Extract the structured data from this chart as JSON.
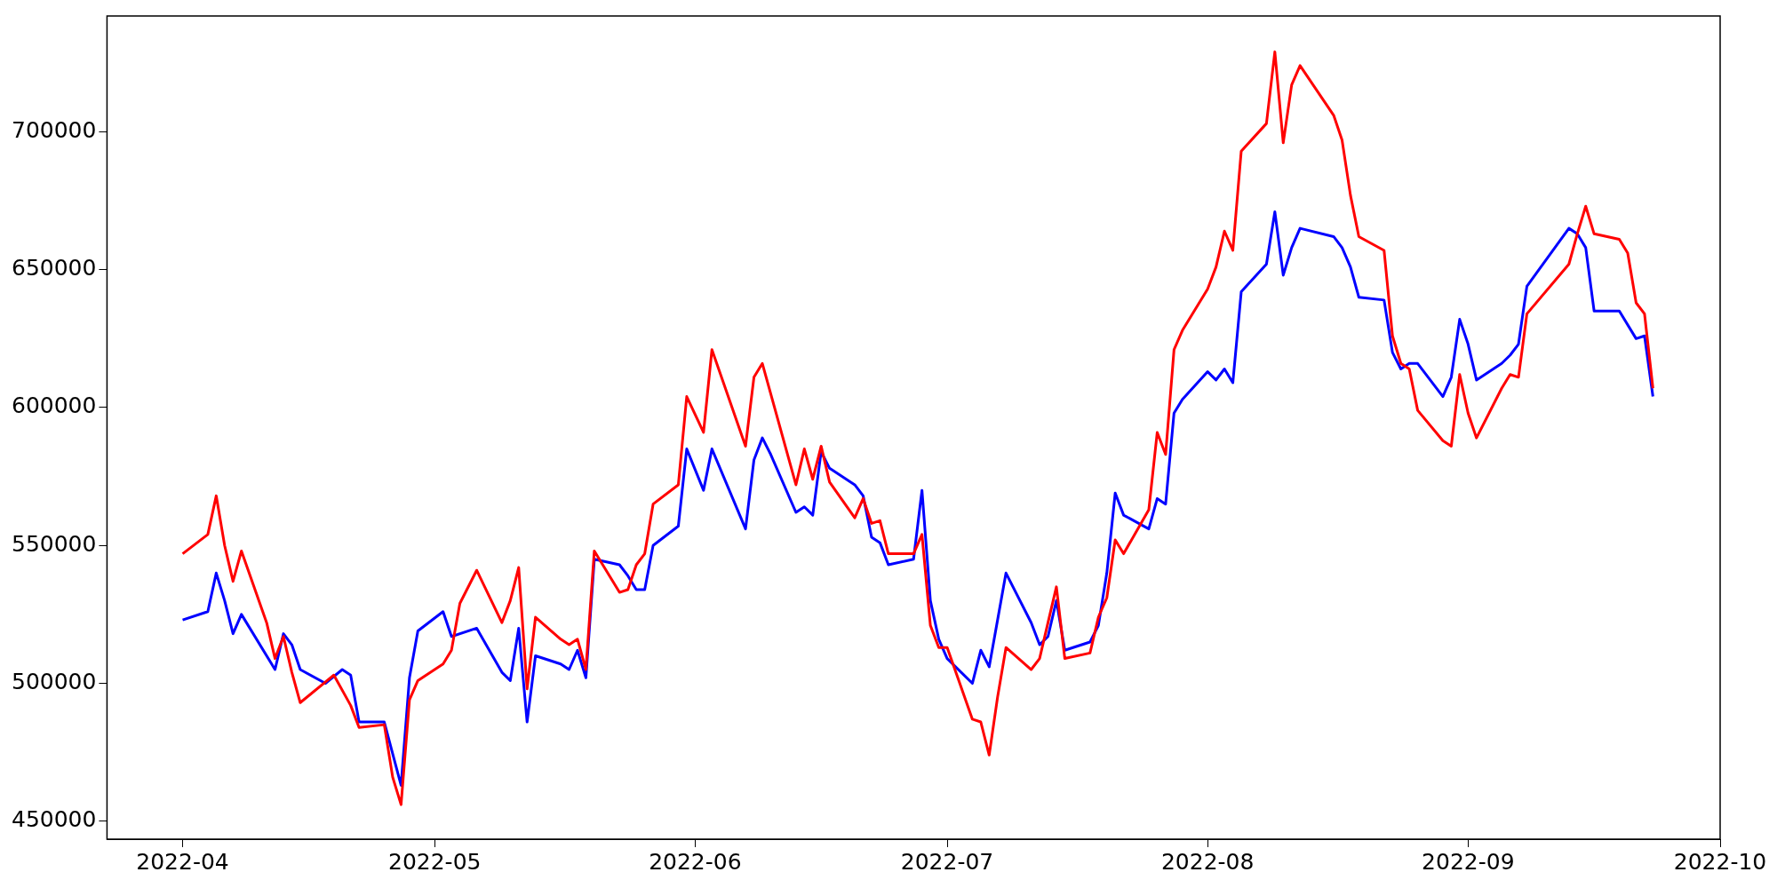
{
  "chart_data": {
    "type": "line",
    "xlim": [
      "2022-03-23",
      "2022-10-01"
    ],
    "ylim": [
      443500,
      742000
    ],
    "xticks": [
      {
        "value": "2022-04-01",
        "label": "2022-04"
      },
      {
        "value": "2022-05-01",
        "label": "2022-05"
      },
      {
        "value": "2022-06-01",
        "label": "2022-06"
      },
      {
        "value": "2022-07-01",
        "label": "2022-07"
      },
      {
        "value": "2022-08-01",
        "label": "2022-08"
      },
      {
        "value": "2022-09-01",
        "label": "2022-09"
      },
      {
        "value": "2022-10-01",
        "label": "2022-10"
      }
    ],
    "yticks": [
      450000,
      500000,
      550000,
      600000,
      650000,
      700000
    ],
    "grid": false,
    "legend": false,
    "marker": "none",
    "line_style": "solid",
    "series": [
      {
        "color": "#ff0000",
        "x": [
          "2022-04-01",
          "2022-04-04",
          "2022-04-05",
          "2022-04-06",
          "2022-04-07",
          "2022-04-08",
          "2022-04-11",
          "2022-04-12",
          "2022-04-13",
          "2022-04-14",
          "2022-04-15",
          "2022-04-19",
          "2022-04-21",
          "2022-04-22",
          "2022-04-25",
          "2022-04-26",
          "2022-04-27",
          "2022-04-28",
          "2022-04-29",
          "2022-05-02",
          "2022-05-03",
          "2022-05-04",
          "2022-05-06",
          "2022-05-09",
          "2022-05-10",
          "2022-05-11",
          "2022-05-12",
          "2022-05-13",
          "2022-05-16",
          "2022-05-17",
          "2022-05-18",
          "2022-05-19",
          "2022-05-20",
          "2022-05-23",
          "2022-05-24",
          "2022-05-25",
          "2022-05-26",
          "2022-05-27",
          "2022-05-30",
          "2022-05-31",
          "2022-06-02",
          "2022-06-03",
          "2022-06-07",
          "2022-06-08",
          "2022-06-09",
          "2022-06-13",
          "2022-06-14",
          "2022-06-15",
          "2022-06-16",
          "2022-06-17",
          "2022-06-20",
          "2022-06-21",
          "2022-06-22",
          "2022-06-23",
          "2022-06-24",
          "2022-06-27",
          "2022-06-28",
          "2022-06-29",
          "2022-06-30",
          "2022-07-01",
          "2022-07-04",
          "2022-07-05",
          "2022-07-06",
          "2022-07-07",
          "2022-07-08",
          "2022-07-11",
          "2022-07-12",
          "2022-07-13",
          "2022-07-14",
          "2022-07-15",
          "2022-07-18",
          "2022-07-19",
          "2022-07-20",
          "2022-07-21",
          "2022-07-22",
          "2022-07-25",
          "2022-07-26",
          "2022-07-27",
          "2022-07-28",
          "2022-07-29",
          "2022-08-01",
          "2022-08-02",
          "2022-08-03",
          "2022-08-04",
          "2022-08-05",
          "2022-08-08",
          "2022-08-09",
          "2022-08-10",
          "2022-08-11",
          "2022-08-12",
          "2022-08-16",
          "2022-08-17",
          "2022-08-18",
          "2022-08-19",
          "2022-08-22",
          "2022-08-23",
          "2022-08-24",
          "2022-08-25",
          "2022-08-26",
          "2022-08-29",
          "2022-08-30",
          "2022-08-31",
          "2022-09-01",
          "2022-09-02",
          "2022-09-05",
          "2022-09-06",
          "2022-09-07",
          "2022-09-08",
          "2022-09-13",
          "2022-09-14",
          "2022-09-15",
          "2022-09-16",
          "2022-09-19",
          "2022-09-20",
          "2022-09-21",
          "2022-09-22",
          "2022-09-23"
        ],
        "values": [
          547000,
          554000,
          568000,
          550000,
          537000,
          548000,
          522000,
          509000,
          517000,
          504000,
          493000,
          503000,
          492000,
          484000,
          485000,
          466000,
          456000,
          494000,
          501000,
          507000,
          512000,
          529000,
          541000,
          522000,
          530000,
          542000,
          498000,
          524000,
          516000,
          514000,
          516000,
          505000,
          548000,
          533000,
          534000,
          543000,
          547000,
          565000,
          572000,
          604000,
          591000,
          621000,
          586000,
          611000,
          616000,
          572000,
          585000,
          574000,
          586000,
          573000,
          560000,
          567000,
          558000,
          559000,
          547000,
          547000,
          554000,
          521000,
          513000,
          513000,
          487000,
          486000,
          474000,
          495000,
          513000,
          505000,
          509000,
          522000,
          535000,
          509000,
          511000,
          524000,
          531000,
          552000,
          547000,
          563000,
          591000,
          583000,
          621000,
          628000,
          643000,
          651000,
          664000,
          657000,
          693000,
          703000,
          729000,
          696000,
          717000,
          724000,
          706000,
          697000,
          677000,
          662000,
          657000,
          626000,
          616000,
          614000,
          599000,
          588000,
          586000,
          612000,
          598000,
          589000,
          607000,
          612000,
          611000,
          634000,
          652000,
          663000,
          673000,
          663000,
          661000,
          656000,
          638000,
          634000,
          607000
        ]
      },
      {
        "color": "#0000ff",
        "x": [
          "2022-04-01",
          "2022-04-04",
          "2022-04-05",
          "2022-04-06",
          "2022-04-07",
          "2022-04-08",
          "2022-04-12",
          "2022-04-13",
          "2022-04-14",
          "2022-04-15",
          "2022-04-18",
          "2022-04-20",
          "2022-04-21",
          "2022-04-22",
          "2022-04-25",
          "2022-04-27",
          "2022-04-28",
          "2022-04-29",
          "2022-05-02",
          "2022-05-03",
          "2022-05-06",
          "2022-05-09",
          "2022-05-10",
          "2022-05-11",
          "2022-05-12",
          "2022-05-13",
          "2022-05-16",
          "2022-05-17",
          "2022-05-18",
          "2022-05-19",
          "2022-05-20",
          "2022-05-23",
          "2022-05-24",
          "2022-05-25",
          "2022-05-26",
          "2022-05-27",
          "2022-05-30",
          "2022-05-31",
          "2022-06-02",
          "2022-06-03",
          "2022-06-07",
          "2022-06-08",
          "2022-06-09",
          "2022-06-10",
          "2022-06-13",
          "2022-06-14",
          "2022-06-15",
          "2022-06-16",
          "2022-06-17",
          "2022-06-20",
          "2022-06-21",
          "2022-06-22",
          "2022-06-23",
          "2022-06-24",
          "2022-06-27",
          "2022-06-28",
          "2022-06-29",
          "2022-06-30",
          "2022-07-01",
          "2022-07-04",
          "2022-07-05",
          "2022-07-06",
          "2022-07-07",
          "2022-07-08",
          "2022-07-11",
          "2022-07-12",
          "2022-07-13",
          "2022-07-14",
          "2022-07-15",
          "2022-07-18",
          "2022-07-19",
          "2022-07-20",
          "2022-07-21",
          "2022-07-22",
          "2022-07-25",
          "2022-07-26",
          "2022-07-27",
          "2022-07-28",
          "2022-07-29",
          "2022-08-01",
          "2022-08-02",
          "2022-08-03",
          "2022-08-04",
          "2022-08-05",
          "2022-08-08",
          "2022-08-09",
          "2022-08-10",
          "2022-08-11",
          "2022-08-12",
          "2022-08-16",
          "2022-08-17",
          "2022-08-18",
          "2022-08-19",
          "2022-08-22",
          "2022-08-23",
          "2022-08-24",
          "2022-08-25",
          "2022-08-26",
          "2022-08-29",
          "2022-08-30",
          "2022-08-31",
          "2022-09-01",
          "2022-09-02",
          "2022-09-05",
          "2022-09-06",
          "2022-09-07",
          "2022-09-08",
          "2022-09-13",
          "2022-09-14",
          "2022-09-15",
          "2022-09-16",
          "2022-09-19",
          "2022-09-21",
          "2022-09-22",
          "2022-09-23"
        ],
        "values": [
          523000,
          526000,
          540000,
          530000,
          518000,
          525000,
          505000,
          518000,
          514000,
          505000,
          500000,
          505000,
          503000,
          486000,
          486000,
          463000,
          502000,
          519000,
          526000,
          517000,
          520000,
          504000,
          501000,
          520000,
          486000,
          510000,
          507000,
          505000,
          512000,
          502000,
          545000,
          543000,
          539000,
          534000,
          534000,
          550000,
          557000,
          585000,
          570000,
          585000,
          556000,
          581000,
          589000,
          583000,
          562000,
          564000,
          561000,
          584000,
          578000,
          572000,
          568000,
          553000,
          551000,
          543000,
          545000,
          570000,
          530000,
          516000,
          509000,
          500000,
          512000,
          506000,
          523000,
          540000,
          522000,
          514000,
          517000,
          530000,
          512000,
          515000,
          521000,
          540000,
          569000,
          561000,
          556000,
          567000,
          565000,
          598000,
          603000,
          613000,
          610000,
          614000,
          609000,
          642000,
          652000,
          671000,
          648000,
          658000,
          665000,
          662000,
          658000,
          651000,
          640000,
          639000,
          620000,
          614000,
          616000,
          616000,
          604000,
          611000,
          632000,
          623000,
          610000,
          616000,
          619000,
          623000,
          644000,
          665000,
          663000,
          658000,
          635000,
          635000,
          625000,
          626000,
          604000
        ]
      }
    ]
  }
}
